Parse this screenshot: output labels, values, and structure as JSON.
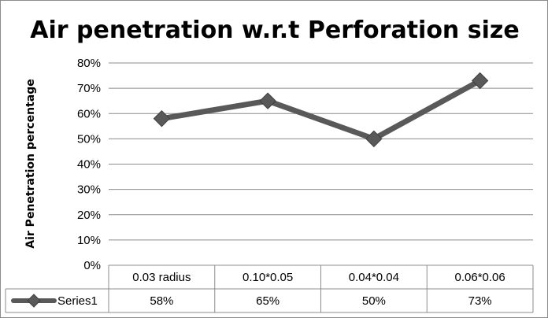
{
  "chart_data": {
    "type": "line",
    "title": "Air penetration w.r.t Perforation size",
    "xlabel": "",
    "ylabel": "Air Penetration percentage",
    "categories": [
      "0.03 radius",
      "0.10*0.05",
      "0.04*0.04",
      "0.06*0.06"
    ],
    "series": [
      {
        "name": "Series1",
        "values": [
          0.58,
          0.65,
          0.5,
          0.73
        ],
        "value_labels": [
          "58%",
          "65%",
          "50%",
          "73%"
        ],
        "color": "#595959",
        "marker": "diamond"
      }
    ],
    "ylim": [
      0,
      0.8
    ],
    "y_ticks": [
      0,
      0.1,
      0.2,
      0.3,
      0.4,
      0.5,
      0.6,
      0.7,
      0.8
    ],
    "y_tick_labels": [
      "0%",
      "10%",
      "20%",
      "30%",
      "40%",
      "50%",
      "60%",
      "70%",
      "80%"
    ],
    "grid": true,
    "legend": "data-table",
    "data_table": true
  }
}
